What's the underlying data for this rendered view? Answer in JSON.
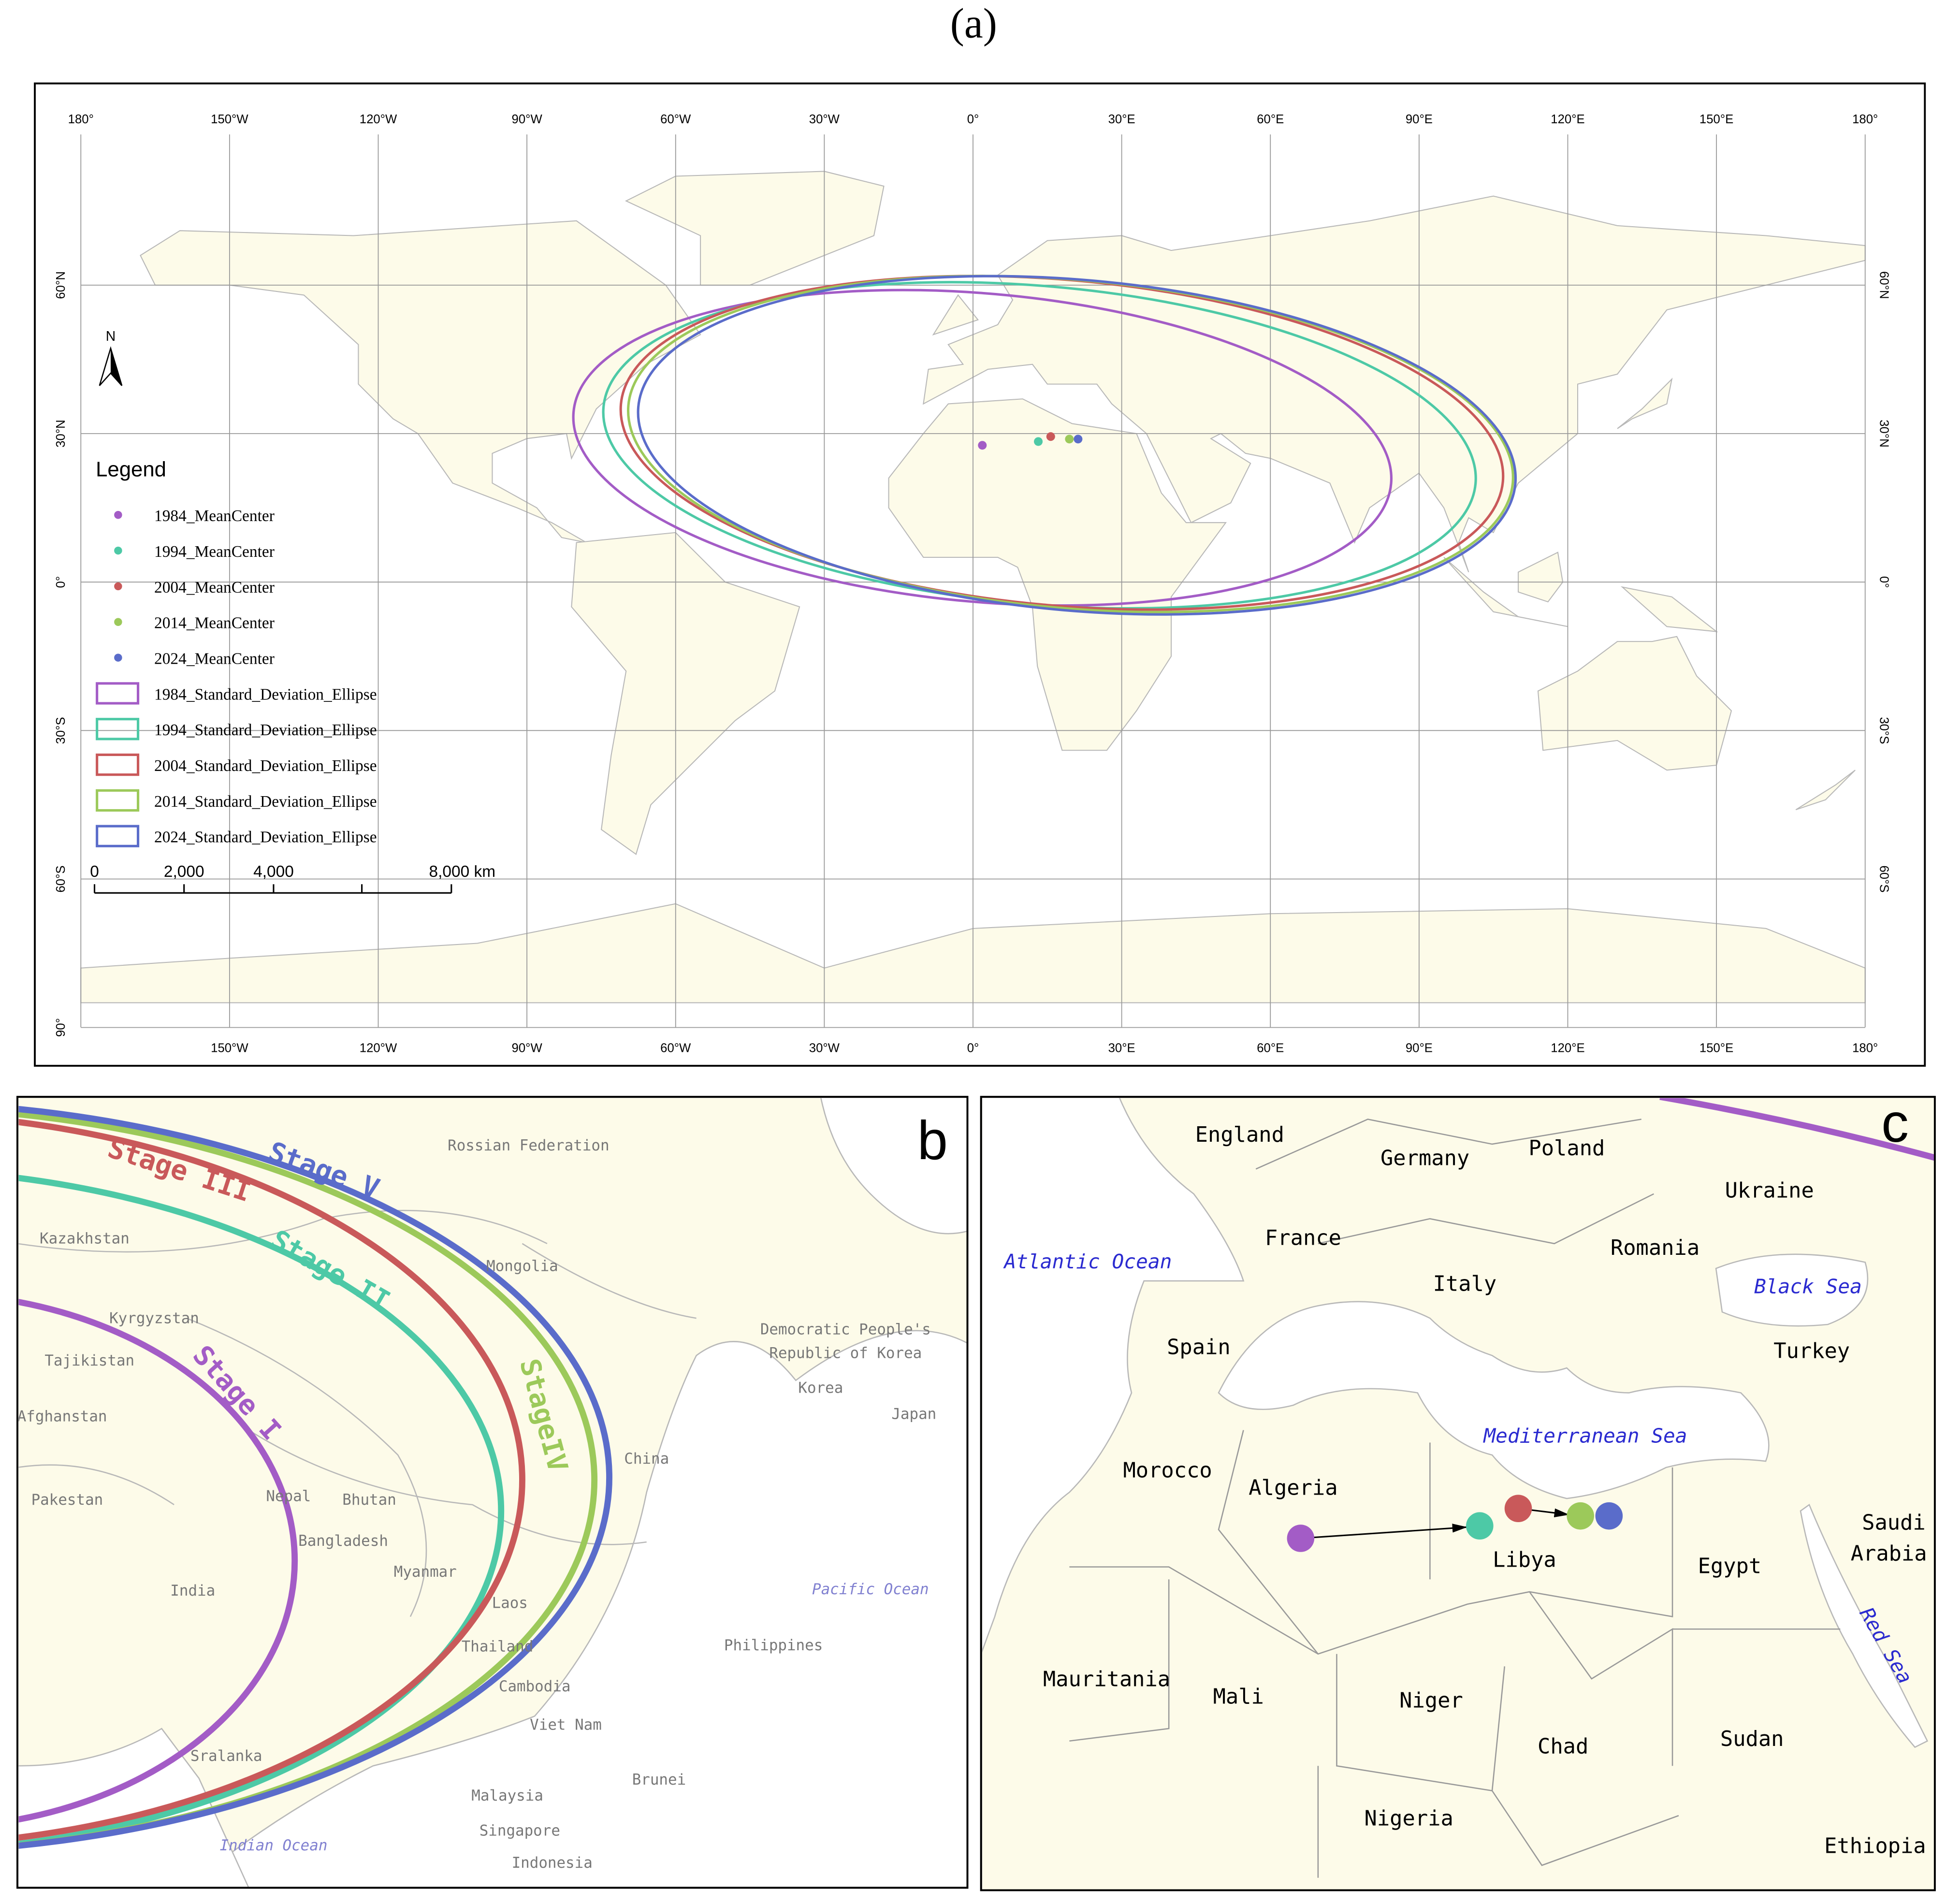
{
  "panel_a": {
    "title": "(a)",
    "lon_labels": [
      "180°",
      "150°W",
      "120°W",
      "90°W",
      "60°W",
      "30°W",
      "0°",
      "30°E",
      "60°E",
      "90°E",
      "120°E",
      "150°E",
      "180°"
    ],
    "lat_labels": [
      "60°N",
      "30°N",
      "0°",
      "30°S",
      "60°S",
      "90°"
    ],
    "north": "N",
    "legend": {
      "title": "Legend",
      "items": [
        {
          "label": "1984_MeanCenter",
          "color": "#a35cc6"
        },
        {
          "label": "1994_MeanCenter",
          "color": "#4dc9a6"
        },
        {
          "label": "2004_MeanCenter",
          "color": "#c9595a"
        },
        {
          "label": "2014_MeanCenter",
          "color": "#9cc95a"
        },
        {
          "label": "2024_MeanCenter",
          "color": "#5a6cca"
        },
        {
          "label": "1984_Standard_Deviation_Ellipse",
          "color": "#a35cc6"
        },
        {
          "label": "1994_Standard_Deviation_Ellipse",
          "color": "#4dc9a6"
        },
        {
          "label": "2004_Standard_Deviation_Ellipse",
          "color": "#c9595a"
        },
        {
          "label": "2014_Standard_Deviation_Ellipse",
          "color": "#9cc95a"
        },
        {
          "label": "2024_Standard_Deviation_Ellipse",
          "color": "#5a6cca"
        }
      ]
    },
    "scale_bar": [
      "0",
      "2,000",
      "4,000",
      "8,000 km"
    ]
  },
  "panel_b": {
    "label": "b",
    "stages": [
      "Stage I",
      "Stage II",
      "Stage III",
      "StageIV",
      "Stage V"
    ],
    "places": [
      "Rossian Federation",
      "Kazakhstan",
      "Mongolia",
      "Kyrgyzstan",
      "Tajikistan",
      "Democratic People's",
      "Republic of Korea",
      "Korea",
      "Japan",
      "Afghanstan",
      "China",
      "Pakestan",
      "Nepal",
      "Bhutan",
      "Bangladesh",
      "Myanmar",
      "India",
      "Laos",
      "Thailand",
      "Cambodia",
      "Viet Nam",
      "Philippines",
      "Sralanka",
      "Malaysia",
      "Brunei",
      "Singapore",
      "Indonesia"
    ],
    "oceans": [
      "Pacific Ocean",
      "Indian Ocean"
    ]
  },
  "panel_c": {
    "label": "c",
    "places": [
      "England",
      "Germany",
      "Poland",
      "Ukraine",
      "France",
      "Romania",
      "Italy",
      "Spain",
      "Turkey",
      "Morocco",
      "Algeria",
      "Libya",
      "Egypt",
      "Saudi",
      "Arabia",
      "Mauritania",
      "Mali",
      "Niger",
      "Chad",
      "Sudan",
      "Nigeria",
      "Ethiopia"
    ],
    "seas": [
      "Atlantic Ocean",
      "Black Sea",
      "Mediterranean Sea",
      "Red Sea"
    ]
  }
}
